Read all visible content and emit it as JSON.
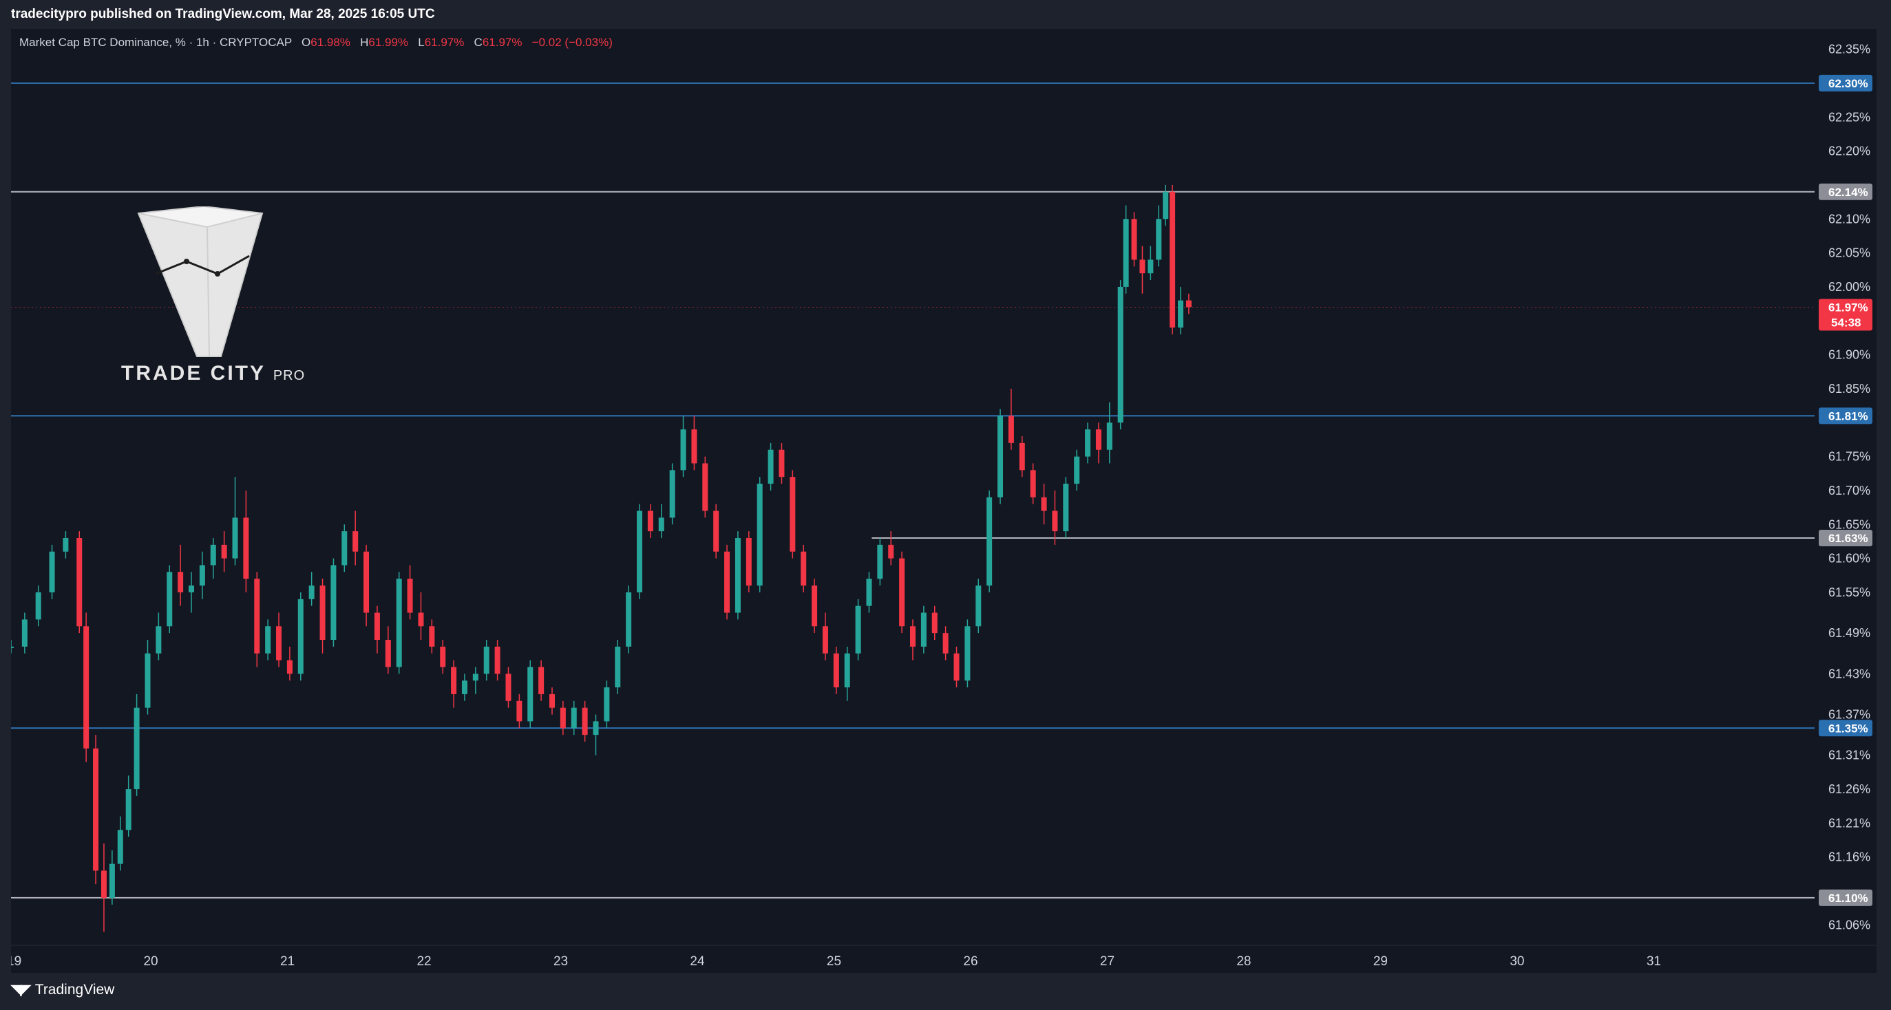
{
  "header": {
    "publisher_line": "tradecitypro published on TradingView.com, Mar 28, 2025 16:05 UTC"
  },
  "legend": {
    "symbol": "Market Cap BTC Dominance, % · 1h · CRYPTOCAP",
    "o_label": "O",
    "o_value": "61.98%",
    "h_label": "H",
    "h_value": "61.99%",
    "l_label": "L",
    "l_value": "61.97%",
    "c_label": "C",
    "c_value": "61.97%",
    "change": "−0.02 (−0.03%)"
  },
  "logo": {
    "text_main": "TRADE CITY",
    "text_sub": "PRO"
  },
  "footer": {
    "brand": "TradingView"
  },
  "colors": {
    "up": "#26a69a",
    "down": "#f23645",
    "blue_level": "#2962ff",
    "gray_level": "#b2b5be",
    "background": "#131722"
  },
  "chart_data": {
    "type": "candlestick",
    "title": "Market Cap BTC Dominance, % · 1h · CRYPTOCAP",
    "xlabel": "",
    "ylabel": "",
    "ylim": [
      61.03,
      62.38
    ],
    "xlim": [
      19,
      32.2
    ],
    "grid": false,
    "x_ticks": [
      "19",
      "20",
      "21",
      "22",
      "23",
      "24",
      "25",
      "26",
      "27",
      "28",
      "29",
      "30",
      "31"
    ],
    "y_ticks": [
      "62.35%",
      "62.25%",
      "62.20%",
      "62.10%",
      "62.05%",
      "62.00%",
      "61.90%",
      "61.85%",
      "61.75%",
      "61.70%",
      "61.65%",
      "61.60%",
      "61.55%",
      "61.49%",
      "61.43%",
      "61.37%",
      "61.31%",
      "61.26%",
      "61.21%",
      "61.16%",
      "61.06%"
    ],
    "levels": [
      {
        "value": 62.3,
        "label": "62.30%",
        "style": "blue"
      },
      {
        "value": 62.14,
        "label": "62.14%",
        "style": "gray"
      },
      {
        "value": 61.81,
        "label": "61.81%",
        "style": "blue"
      },
      {
        "value": 61.63,
        "label": "61.63%",
        "style": "gray",
        "start": 25.3
      },
      {
        "value": 61.35,
        "label": "61.35%",
        "style": "blue"
      },
      {
        "value": 61.1,
        "label": "61.10%",
        "style": "gray"
      }
    ],
    "current_price": {
      "value": 61.97,
      "label": "61.97%",
      "countdown": "54:38"
    },
    "series": [
      {
        "x": 19.0,
        "v": [
          61.47,
          61.48,
          61.46,
          61.47
        ]
      },
      {
        "x": 19.1,
        "v": [
          61.47,
          61.52,
          61.46,
          61.51
        ]
      },
      {
        "x": 19.2,
        "v": [
          61.51,
          61.56,
          61.5,
          61.55
        ]
      },
      {
        "x": 19.3,
        "v": [
          61.55,
          61.62,
          61.54,
          61.61
        ]
      },
      {
        "x": 19.4,
        "v": [
          61.61,
          61.64,
          61.6,
          61.63
        ]
      },
      {
        "x": 19.5,
        "v": [
          61.63,
          61.64,
          61.49,
          61.5
        ]
      },
      {
        "x": 19.55,
        "v": [
          61.5,
          61.52,
          61.3,
          61.32
        ]
      },
      {
        "x": 19.62,
        "v": [
          61.32,
          61.34,
          61.12,
          61.14
        ]
      },
      {
        "x": 19.68,
        "v": [
          61.14,
          61.18,
          61.05,
          61.1
        ]
      },
      {
        "x": 19.74,
        "v": [
          61.1,
          61.17,
          61.09,
          61.15
        ]
      },
      {
        "x": 19.8,
        "v": [
          61.15,
          61.22,
          61.14,
          61.2
        ]
      },
      {
        "x": 19.86,
        "v": [
          61.2,
          61.28,
          61.19,
          61.26
        ]
      },
      {
        "x": 19.92,
        "v": [
          61.26,
          61.4,
          61.25,
          61.38
        ]
      },
      {
        "x": 20.0,
        "v": [
          61.38,
          61.48,
          61.37,
          61.46
        ]
      },
      {
        "x": 20.08,
        "v": [
          61.46,
          61.52,
          61.45,
          61.5
        ]
      },
      {
        "x": 20.16,
        "v": [
          61.5,
          61.59,
          61.49,
          61.58
        ]
      },
      {
        "x": 20.24,
        "v": [
          61.58,
          61.62,
          61.53,
          61.55
        ]
      },
      {
        "x": 20.32,
        "v": [
          61.55,
          61.58,
          61.52,
          61.56
        ]
      },
      {
        "x": 20.4,
        "v": [
          61.56,
          61.61,
          61.54,
          61.59
        ]
      },
      {
        "x": 20.48,
        "v": [
          61.59,
          61.63,
          61.57,
          61.62
        ]
      },
      {
        "x": 20.56,
        "v": [
          61.62,
          61.64,
          61.58,
          61.6
        ]
      },
      {
        "x": 20.64,
        "v": [
          61.6,
          61.72,
          61.59,
          61.66
        ]
      },
      {
        "x": 20.72,
        "v": [
          61.66,
          61.7,
          61.55,
          61.57
        ]
      },
      {
        "x": 20.8,
        "v": [
          61.57,
          61.58,
          61.44,
          61.46
        ]
      },
      {
        "x": 20.88,
        "v": [
          61.46,
          61.51,
          61.45,
          61.5
        ]
      },
      {
        "x": 20.96,
        "v": [
          61.5,
          61.52,
          61.44,
          61.45
        ]
      },
      {
        "x": 21.04,
        "v": [
          61.45,
          61.47,
          61.42,
          61.43
        ]
      },
      {
        "x": 21.12,
        "v": [
          61.43,
          61.55,
          61.42,
          61.54
        ]
      },
      {
        "x": 21.2,
        "v": [
          61.54,
          61.58,
          61.53,
          61.56
        ]
      },
      {
        "x": 21.28,
        "v": [
          61.56,
          61.57,
          61.46,
          61.48
        ]
      },
      {
        "x": 21.36,
        "v": [
          61.48,
          61.6,
          61.47,
          61.59
        ]
      },
      {
        "x": 21.44,
        "v": [
          61.59,
          61.65,
          61.58,
          61.64
        ]
      },
      {
        "x": 21.52,
        "v": [
          61.64,
          61.67,
          61.59,
          61.61
        ]
      },
      {
        "x": 21.6,
        "v": [
          61.61,
          61.62,
          61.5,
          61.52
        ]
      },
      {
        "x": 21.68,
        "v": [
          61.52,
          61.53,
          61.46,
          61.48
        ]
      },
      {
        "x": 21.76,
        "v": [
          61.48,
          61.5,
          61.43,
          61.44
        ]
      },
      {
        "x": 21.84,
        "v": [
          61.44,
          61.58,
          61.43,
          61.57
        ]
      },
      {
        "x": 21.92,
        "v": [
          61.57,
          61.59,
          61.51,
          61.52
        ]
      },
      {
        "x": 22.0,
        "v": [
          61.52,
          61.55,
          61.48,
          61.5
        ]
      },
      {
        "x": 22.08,
        "v": [
          61.5,
          61.51,
          61.46,
          61.47
        ]
      },
      {
        "x": 22.16,
        "v": [
          61.47,
          61.48,
          61.43,
          61.44
        ]
      },
      {
        "x": 22.24,
        "v": [
          61.44,
          61.45,
          61.38,
          61.4
        ]
      },
      {
        "x": 22.32,
        "v": [
          61.4,
          61.43,
          61.39,
          61.42
        ]
      },
      {
        "x": 22.4,
        "v": [
          61.42,
          61.44,
          61.4,
          61.43
        ]
      },
      {
        "x": 22.48,
        "v": [
          61.43,
          61.48,
          61.42,
          61.47
        ]
      },
      {
        "x": 22.56,
        "v": [
          61.47,
          61.48,
          61.42,
          61.43
        ]
      },
      {
        "x": 22.64,
        "v": [
          61.43,
          61.44,
          61.38,
          61.39
        ]
      },
      {
        "x": 22.72,
        "v": [
          61.39,
          61.4,
          61.35,
          61.36
        ]
      },
      {
        "x": 22.8,
        "v": [
          61.36,
          61.45,
          61.35,
          61.44
        ]
      },
      {
        "x": 22.88,
        "v": [
          61.44,
          61.45,
          61.39,
          61.4
        ]
      },
      {
        "x": 22.96,
        "v": [
          61.4,
          61.41,
          61.37,
          61.38
        ]
      },
      {
        "x": 23.04,
        "v": [
          61.38,
          61.39,
          61.34,
          61.35
        ]
      },
      {
        "x": 23.12,
        "v": [
          61.35,
          61.39,
          61.34,
          61.38
        ]
      },
      {
        "x": 23.2,
        "v": [
          61.38,
          61.39,
          61.33,
          61.34
        ]
      },
      {
        "x": 23.28,
        "v": [
          61.34,
          61.37,
          61.31,
          61.36
        ]
      },
      {
        "x": 23.36,
        "v": [
          61.36,
          61.42,
          61.35,
          61.41
        ]
      },
      {
        "x": 23.44,
        "v": [
          61.41,
          61.48,
          61.4,
          61.47
        ]
      },
      {
        "x": 23.52,
        "v": [
          61.47,
          61.56,
          61.46,
          61.55
        ]
      },
      {
        "x": 23.6,
        "v": [
          61.55,
          61.68,
          61.54,
          61.67
        ]
      },
      {
        "x": 23.68,
        "v": [
          61.67,
          61.68,
          61.63,
          61.64
        ]
      },
      {
        "x": 23.76,
        "v": [
          61.64,
          61.68,
          61.63,
          61.66
        ]
      },
      {
        "x": 23.84,
        "v": [
          61.66,
          61.74,
          61.65,
          61.73
        ]
      },
      {
        "x": 23.92,
        "v": [
          61.73,
          61.81,
          61.72,
          61.79
        ]
      },
      {
        "x": 24.0,
        "v": [
          61.79,
          61.81,
          61.73,
          61.74
        ]
      },
      {
        "x": 24.08,
        "v": [
          61.74,
          61.75,
          61.66,
          61.67
        ]
      },
      {
        "x": 24.16,
        "v": [
          61.67,
          61.68,
          61.6,
          61.61
        ]
      },
      {
        "x": 24.24,
        "v": [
          61.61,
          61.62,
          61.51,
          61.52
        ]
      },
      {
        "x": 24.32,
        "v": [
          61.52,
          61.64,
          61.51,
          61.63
        ]
      },
      {
        "x": 24.4,
        "v": [
          61.63,
          61.64,
          61.55,
          61.56
        ]
      },
      {
        "x": 24.48,
        "v": [
          61.56,
          61.72,
          61.55,
          61.71
        ]
      },
      {
        "x": 24.56,
        "v": [
          61.71,
          61.77,
          61.7,
          61.76
        ]
      },
      {
        "x": 24.64,
        "v": [
          61.76,
          61.77,
          61.71,
          61.72
        ]
      },
      {
        "x": 24.72,
        "v": [
          61.72,
          61.73,
          61.6,
          61.61
        ]
      },
      {
        "x": 24.8,
        "v": [
          61.61,
          61.62,
          61.55,
          61.56
        ]
      },
      {
        "x": 24.88,
        "v": [
          61.56,
          61.57,
          61.49,
          61.5
        ]
      },
      {
        "x": 24.96,
        "v": [
          61.5,
          61.52,
          61.45,
          61.46
        ]
      },
      {
        "x": 25.04,
        "v": [
          61.46,
          61.47,
          61.4,
          61.41
        ]
      },
      {
        "x": 25.12,
        "v": [
          61.41,
          61.47,
          61.39,
          61.46
        ]
      },
      {
        "x": 25.2,
        "v": [
          61.46,
          61.54,
          61.45,
          61.53
        ]
      },
      {
        "x": 25.28,
        "v": [
          61.53,
          61.58,
          61.52,
          61.57
        ]
      },
      {
        "x": 25.36,
        "v": [
          61.57,
          61.63,
          61.56,
          61.62
        ]
      },
      {
        "x": 25.44,
        "v": [
          61.62,
          61.64,
          61.59,
          61.6
        ]
      },
      {
        "x": 25.52,
        "v": [
          61.6,
          61.61,
          61.49,
          61.5
        ]
      },
      {
        "x": 25.6,
        "v": [
          61.5,
          61.51,
          61.45,
          61.47
        ]
      },
      {
        "x": 25.68,
        "v": [
          61.47,
          61.53,
          61.46,
          61.52
        ]
      },
      {
        "x": 25.76,
        "v": [
          61.52,
          61.53,
          61.48,
          61.49
        ]
      },
      {
        "x": 25.84,
        "v": [
          61.49,
          61.5,
          61.45,
          61.46
        ]
      },
      {
        "x": 25.92,
        "v": [
          61.46,
          61.47,
          61.41,
          61.42
        ]
      },
      {
        "x": 26.0,
        "v": [
          61.42,
          61.51,
          61.41,
          61.5
        ]
      },
      {
        "x": 26.08,
        "v": [
          61.5,
          61.57,
          61.49,
          61.56
        ]
      },
      {
        "x": 26.16,
        "v": [
          61.56,
          61.7,
          61.55,
          61.69
        ]
      },
      {
        "x": 26.24,
        "v": [
          61.69,
          61.82,
          61.68,
          61.81
        ]
      },
      {
        "x": 26.32,
        "v": [
          61.81,
          61.85,
          61.76,
          61.77
        ]
      },
      {
        "x": 26.4,
        "v": [
          61.77,
          61.78,
          61.72,
          61.73
        ]
      },
      {
        "x": 26.48,
        "v": [
          61.73,
          61.74,
          61.68,
          61.69
        ]
      },
      {
        "x": 26.56,
        "v": [
          61.69,
          61.71,
          61.65,
          61.67
        ]
      },
      {
        "x": 26.64,
        "v": [
          61.67,
          61.7,
          61.62,
          61.64
        ]
      },
      {
        "x": 26.72,
        "v": [
          61.64,
          61.72,
          61.63,
          61.71
        ]
      },
      {
        "x": 26.8,
        "v": [
          61.71,
          61.76,
          61.7,
          61.75
        ]
      },
      {
        "x": 26.88,
        "v": [
          61.75,
          61.8,
          61.74,
          61.79
        ]
      },
      {
        "x": 26.96,
        "v": [
          61.79,
          61.8,
          61.74,
          61.76
        ]
      },
      {
        "x": 27.04,
        "v": [
          61.76,
          61.83,
          61.74,
          61.8
        ]
      },
      {
        "x": 27.12,
        "v": [
          61.8,
          62.01,
          61.79,
          62.0
        ]
      },
      {
        "x": 27.16,
        "v": [
          62.0,
          62.12,
          61.99,
          62.1
        ]
      },
      {
        "x": 27.22,
        "v": [
          62.1,
          62.11,
          62.03,
          62.04
        ]
      },
      {
        "x": 27.28,
        "v": [
          62.04,
          62.06,
          61.99,
          62.02
        ]
      },
      {
        "x": 27.34,
        "v": [
          62.02,
          62.06,
          62.01,
          62.04
        ]
      },
      {
        "x": 27.4,
        "v": [
          62.04,
          62.12,
          62.03,
          62.1
        ]
      },
      {
        "x": 27.45,
        "v": [
          62.1,
          62.15,
          62.09,
          62.14
        ]
      },
      {
        "x": 27.5,
        "v": [
          62.14,
          62.15,
          61.93,
          61.94
        ]
      },
      {
        "x": 27.56,
        "v": [
          61.94,
          62.0,
          61.93,
          61.98
        ]
      },
      {
        "x": 27.62,
        "v": [
          61.98,
          61.99,
          61.96,
          61.97
        ]
      }
    ]
  }
}
